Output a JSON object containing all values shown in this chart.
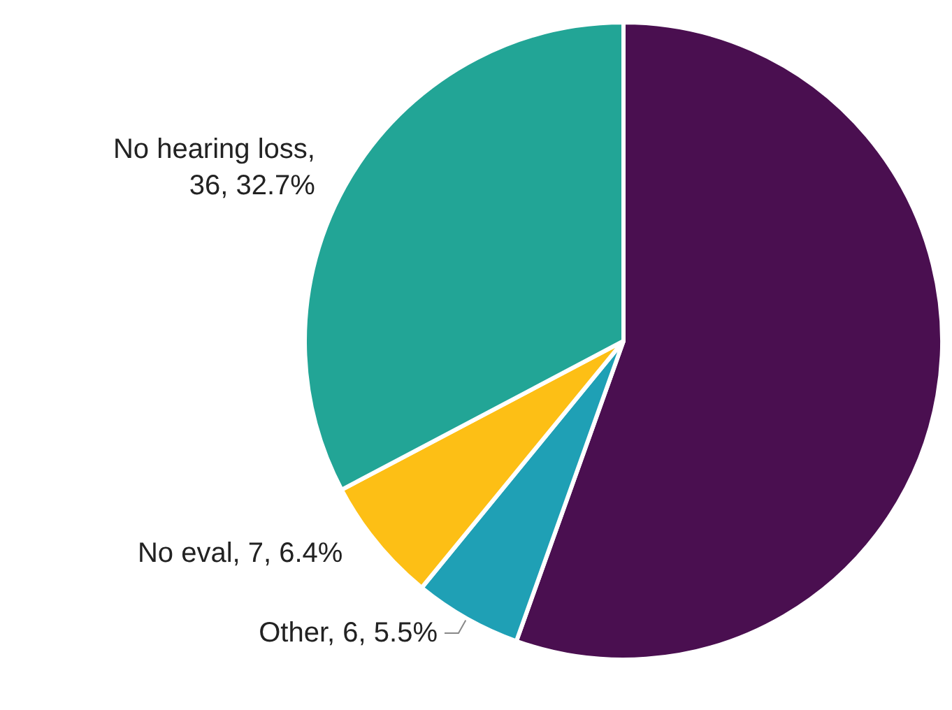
{
  "chart_data": {
    "type": "pie",
    "categories": [
      null,
      "Other",
      "No eval",
      "No hearing loss"
    ],
    "values": [
      61,
      6,
      7,
      36
    ],
    "value_labels": [
      null,
      ", 6, 5.5%",
      ", 7, 6.4%",
      ", 36, 32.7%"
    ],
    "colors": [
      "#4a0f50",
      "#1fa0b5",
      "#fdbf15",
      "#22a596"
    ]
  }
}
